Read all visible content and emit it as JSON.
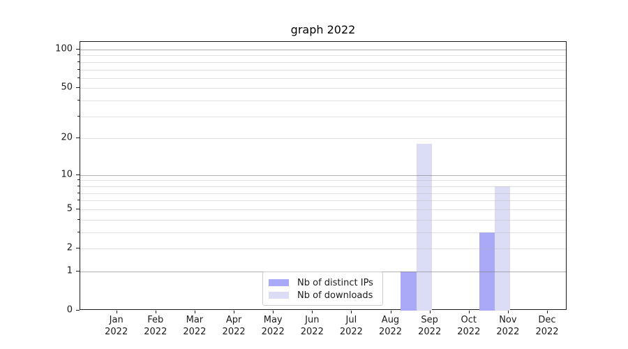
{
  "figure": {
    "background": "#ffffff"
  },
  "chart_data": {
    "type": "bar",
    "title": "graph 2022",
    "categories": [
      "Jan",
      "Feb",
      "Mar",
      "Apr",
      "May",
      "Jun",
      "Jul",
      "Aug",
      "Sep",
      "Oct",
      "Nov",
      "Dec"
    ],
    "category_year": "2022",
    "series": [
      {
        "name": "Nb of distinct IPs",
        "color": "#a9a9f7",
        "values": [
          0,
          0,
          0,
          0,
          0,
          0,
          0,
          0,
          1,
          0,
          3,
          0
        ]
      },
      {
        "name": "Nb of downloads",
        "color": "#dcdcf7",
        "values": [
          0,
          0,
          0,
          0,
          0,
          0,
          0,
          0,
          18,
          0,
          8,
          0
        ]
      }
    ],
    "xlabel": "",
    "ylabel": "",
    "yscale": "log1p",
    "ytick_labels": [
      "0",
      "1",
      "2",
      "5",
      "10",
      "20",
      "50",
      "100"
    ],
    "ytick_values": [
      0,
      1,
      2,
      5,
      10,
      20,
      50,
      100
    ],
    "yminor_values": [
      3,
      4,
      6,
      7,
      8,
      9,
      30,
      40,
      60,
      70,
      80,
      90
    ],
    "ylim": [
      0,
      115
    ],
    "grid": "horizontal",
    "grid_major_values": [
      1,
      10,
      100
    ],
    "legend_position": "lower-center",
    "colors": {
      "grid_major": "rgba(128,128,128,0.62)",
      "grid_minor": "rgba(180,180,180,0.40)",
      "spine": "#1a1a1a"
    }
  }
}
